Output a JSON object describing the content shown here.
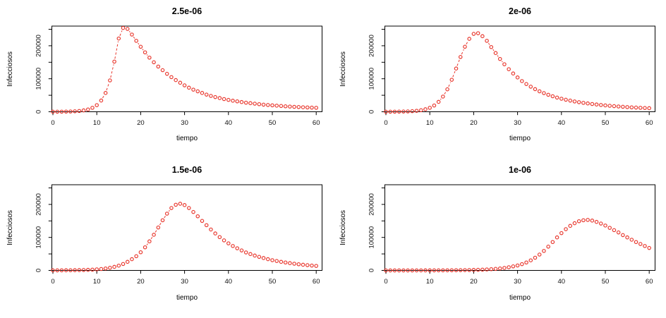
{
  "figure": {
    "layout": "2x2",
    "background": "#ffffff",
    "axis_color": "#000000",
    "text_color": "#000000"
  },
  "chart_data": [
    {
      "type": "line",
      "title": "2.5e-06",
      "xlabel": "tiempo",
      "ylabel": "Infecciosos",
      "marker": "open-circle",
      "line_style": "dashed",
      "color": "#e8352b",
      "grid": false,
      "legend": null,
      "xlim": [
        0,
        60
      ],
      "ylim": [
        0,
        260000
      ],
      "x_ticks": [
        0,
        10,
        20,
        30,
        40,
        50,
        60
      ],
      "y_ticks": [
        0,
        50000,
        100000,
        150000,
        200000,
        250000
      ],
      "y_labeled_ticks": [
        0,
        100000,
        200000
      ],
      "x_start": 0,
      "x_step": 1,
      "values": [
        100,
        170,
        290,
        490,
        830,
        1400,
        2400,
        4100,
        7000,
        12000,
        20000,
        34000,
        57000,
        95000,
        152000,
        222000,
        254000,
        251000,
        234000,
        215000,
        197000,
        180000,
        164000,
        150000,
        137000,
        126000,
        115000,
        105000,
        96000,
        88000,
        80000,
        73000,
        67000,
        62000,
        57000,
        52000,
        48000,
        44500,
        41500,
        38500,
        36000,
        33500,
        31500,
        29500,
        27500,
        26000,
        24500,
        23000,
        21500,
        20500,
        19500,
        18500,
        17500,
        16500,
        15800,
        15000,
        14300,
        13700,
        13100,
        12500,
        12000
      ]
    },
    {
      "type": "line",
      "title": "2e-06",
      "xlabel": "tiempo",
      "ylabel": "Infecciosos",
      "marker": "open-circle",
      "line_style": "dashed",
      "color": "#e8352b",
      "grid": false,
      "legend": null,
      "xlim": [
        0,
        60
      ],
      "ylim": [
        0,
        260000
      ],
      "x_ticks": [
        0,
        10,
        20,
        30,
        40,
        50,
        60
      ],
      "y_ticks": [
        0,
        50000,
        100000,
        150000,
        200000,
        250000
      ],
      "y_labeled_ticks": [
        0,
        100000,
        200000
      ],
      "x_start": 0,
      "x_step": 1,
      "values": [
        100,
        160,
        260,
        420,
        680,
        1100,
        1800,
        2900,
        4700,
        7600,
        12000,
        19000,
        30000,
        46000,
        68000,
        97000,
        131000,
        166000,
        197000,
        221000,
        236000,
        238000,
        229000,
        215000,
        196000,
        178000,
        160000,
        144000,
        129000,
        116000,
        104000,
        93000,
        84000,
        76000,
        68500,
        62000,
        56500,
        51500,
        47000,
        43000,
        39500,
        36500,
        33800,
        31300,
        29000,
        27000,
        25200,
        23500,
        22000,
        20600,
        19300,
        18100,
        17000,
        16000,
        15100,
        14200,
        13400,
        12700,
        12000,
        11400,
        10800
      ]
    },
    {
      "type": "line",
      "title": "1.5e-06",
      "xlabel": "tiempo",
      "ylabel": "Infecciosos",
      "marker": "open-circle",
      "line_style": "dashed",
      "color": "#e8352b",
      "grid": false,
      "legend": null,
      "xlim": [
        0,
        60
      ],
      "ylim": [
        0,
        260000
      ],
      "x_ticks": [
        0,
        10,
        20,
        30,
        40,
        50,
        60
      ],
      "y_ticks": [
        0,
        50000,
        100000,
        150000,
        200000,
        250000
      ],
      "y_labeled_ticks": [
        0,
        100000,
        200000
      ],
      "x_start": 0,
      "x_step": 1,
      "values": [
        130,
        180,
        250,
        350,
        480,
        650,
        900,
        1250,
        1700,
        2300,
        3200,
        4300,
        5900,
        8000,
        10800,
        14500,
        19500,
        26000,
        34000,
        43000,
        55000,
        70000,
        88000,
        108000,
        130000,
        152000,
        172000,
        189000,
        199000,
        202000,
        198000,
        189000,
        177000,
        164000,
        150000,
        137000,
        124000,
        112000,
        101000,
        91000,
        82000,
        74000,
        67000,
        60500,
        54500,
        49500,
        45000,
        41000,
        37500,
        34000,
        31000,
        28500,
        26000,
        24000,
        22000,
        20300,
        18700,
        17200,
        15900,
        14700,
        13600
      ]
    },
    {
      "type": "line",
      "title": "1e-06",
      "xlabel": "tiempo",
      "ylabel": "Infecciosos",
      "marker": "open-circle",
      "line_style": "dashed",
      "color": "#e8352b",
      "grid": false,
      "legend": null,
      "xlim": [
        0,
        60
      ],
      "ylim": [
        0,
        260000
      ],
      "x_ticks": [
        0,
        10,
        20,
        30,
        40,
        50,
        60
      ],
      "y_ticks": [
        0,
        50000,
        100000,
        150000,
        200000,
        250000
      ],
      "y_labeled_ticks": [
        0,
        100000,
        200000
      ],
      "x_start": 0,
      "x_step": 1,
      "values": [
        12,
        15,
        19,
        24,
        31,
        39,
        50,
        63,
        80,
        102,
        130,
        165,
        210,
        266,
        338,
        430,
        545,
        690,
        880,
        1120,
        1420,
        1800,
        2290,
        2900,
        3690,
        4700,
        5950,
        7550,
        9600,
        12200,
        15000,
        19000,
        24000,
        30500,
        38500,
        48000,
        59000,
        72000,
        86000,
        100000,
        113000,
        125000,
        135000,
        143000,
        149000,
        152000,
        153000,
        151000,
        147000,
        142000,
        136000,
        129000,
        122000,
        115000,
        107000,
        100000,
        93000,
        86000,
        80000,
        74000,
        68000
      ]
    }
  ]
}
